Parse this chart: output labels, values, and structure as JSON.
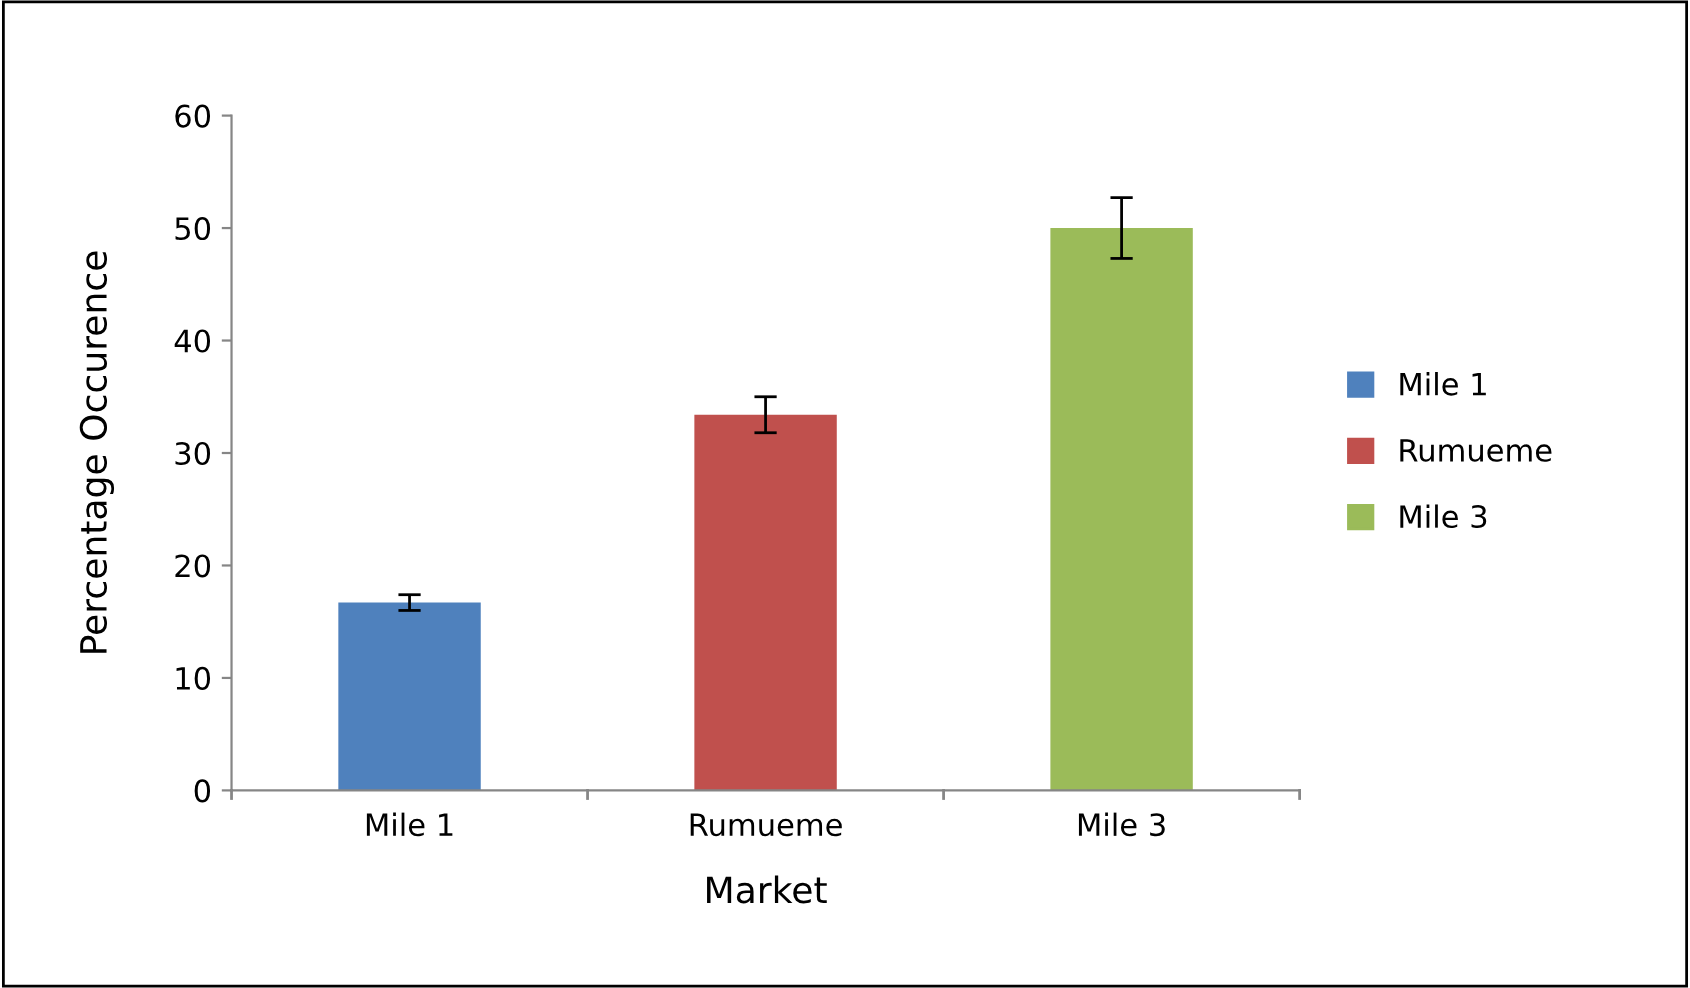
{
  "chart_data": {
    "type": "bar",
    "xlabel": "Market",
    "ylabel": "Percentage Occurence",
    "categories": [
      "Mile 1",
      "Rumueme",
      "Mile 3"
    ],
    "series": [
      {
        "name": "Mile 1",
        "color": "#4f81bd",
        "values": [
          16.7,
          null,
          null
        ],
        "errors": [
          0.7,
          null,
          null
        ]
      },
      {
        "name": "Rumueme",
        "color": "#c0504d",
        "values": [
          null,
          33.4,
          null
        ],
        "errors": [
          null,
          1.6,
          null
        ]
      },
      {
        "name": "Mile 3",
        "color": "#9bbb59",
        "values": [
          null,
          null,
          50
        ],
        "errors": [
          null,
          null,
          2.7
        ]
      }
    ],
    "ylim": [
      0,
      60
    ],
    "yticks": [
      0,
      10,
      20,
      30,
      40,
      50,
      60
    ],
    "grid": false,
    "legend": "right"
  }
}
